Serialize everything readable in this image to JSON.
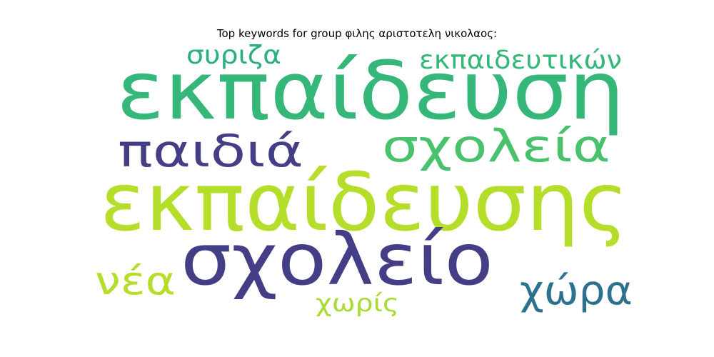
{
  "title": "Top keywords for group φιλης αριστοτελη νικολαος:",
  "chart_data": {
    "type": "wordcloud",
    "title": "Top keywords for group φιλης αριστοτελη νικολαος:",
    "words": [
      {
        "text": "εκπαίδευση",
        "weight": 1.0,
        "color": "#35b779"
      },
      {
        "text": "εκπαίδευσης",
        "weight": 0.98,
        "color": "#b5de2b"
      },
      {
        "text": "σχολείο",
        "weight": 0.84,
        "color": "#433e85"
      },
      {
        "text": "σχολεία",
        "weight": 0.5,
        "color": "#4ac16d"
      },
      {
        "text": "παιδιά",
        "weight": 0.48,
        "color": "#433e85"
      },
      {
        "text": "χώρα",
        "weight": 0.42,
        "color": "#2c728e"
      },
      {
        "text": "νέα",
        "weight": 0.4,
        "color": "#b5de2b"
      },
      {
        "text": "εκπαιδευτικών",
        "weight": 0.27,
        "color": "#35b779"
      },
      {
        "text": "συριζα",
        "weight": 0.27,
        "color": "#2ab07f"
      },
      {
        "text": "χωρίς",
        "weight": 0.25,
        "color": "#a8db34"
      }
    ]
  }
}
